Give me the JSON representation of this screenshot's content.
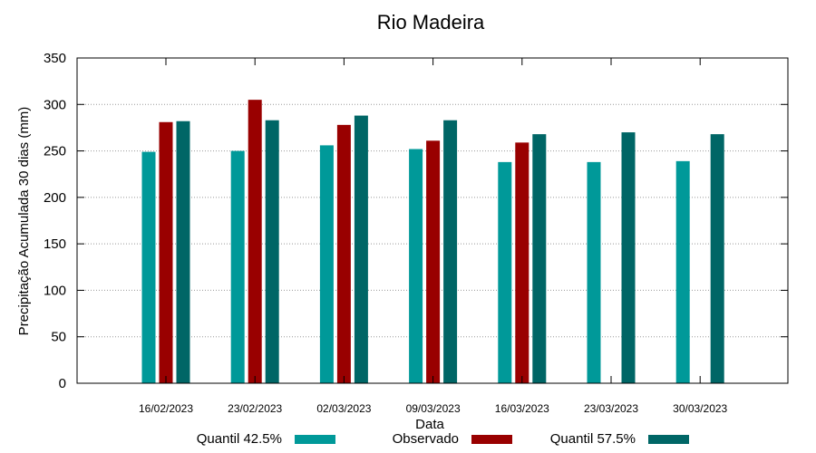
{
  "chart_data": {
    "type": "bar",
    "title": "Rio Madeira",
    "xlabel": "Data",
    "ylabel": "Precipitação Acumulada 30 dias (mm)",
    "ylim": [
      0,
      350
    ],
    "yticks": [
      0,
      50,
      100,
      150,
      200,
      250,
      300,
      350
    ],
    "grid": true,
    "legend_position": "bottom",
    "categories": [
      "16/02/2023",
      "23/02/2023",
      "02/03/2023",
      "09/03/2023",
      "16/03/2023",
      "23/03/2023",
      "30/03/2023"
    ],
    "series": [
      {
        "name": "Quantil 42.5%",
        "color": "#009999",
        "values": [
          249,
          250,
          256,
          252,
          238,
          238,
          239
        ]
      },
      {
        "name": "Observado",
        "color": "#990000",
        "values": [
          281,
          305,
          278,
          261,
          259,
          null,
          null
        ]
      },
      {
        "name": "Quantil 57.5%",
        "color": "#006666",
        "values": [
          282,
          283,
          288,
          283,
          268,
          270,
          268
        ]
      }
    ]
  }
}
